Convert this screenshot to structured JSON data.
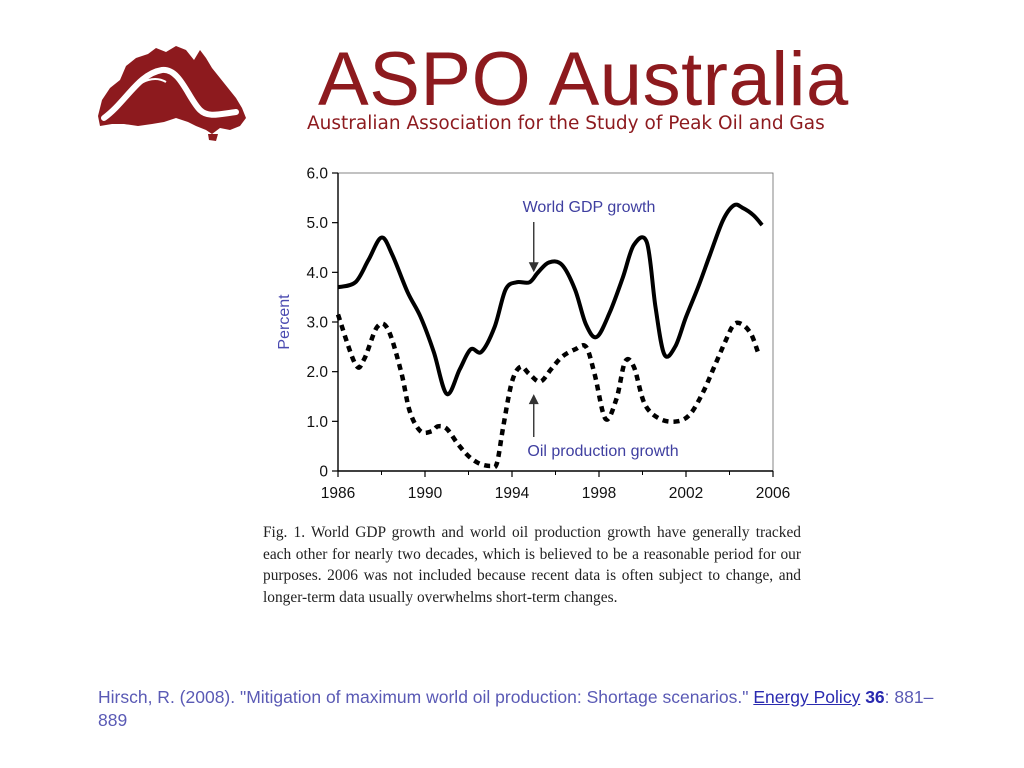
{
  "header": {
    "title": "ASPO Australia",
    "subtitle": "Australian Association for the Study of Peak Oil and Gas",
    "logo_icon": "australia-map-logo-icon",
    "brand_color": "#8d1a1e"
  },
  "chart_data": {
    "type": "line",
    "title": "",
    "xlabel": "",
    "ylabel": "Percent",
    "xlim": [
      1986,
      2006
    ],
    "ylim": [
      0,
      6
    ],
    "grid": false,
    "x_ticks": [
      "1986",
      "1990",
      "1994",
      "1998",
      "2002",
      "2006"
    ],
    "y_ticks": [
      "0",
      "1.0",
      "2.0",
      "3.0",
      "4.0",
      "5.0",
      "6.0"
    ],
    "series": [
      {
        "name": "World GDP growth",
        "style": "solid",
        "color": "#000000",
        "x": [
          1986,
          1986.8,
          1987.4,
          1988.0,
          1988.5,
          1989.2,
          1989.8,
          1990.4,
          1991.0,
          1991.6,
          1992.1,
          1992.6,
          1993.2,
          1993.7,
          1994.2,
          1994.8,
          1995.2,
          1995.7,
          1996.3,
          1996.9,
          1997.4,
          1997.9,
          1998.5,
          1999.1,
          1999.6,
          2000.2,
          2000.6,
          2001.0,
          2001.5,
          2002.0,
          2002.6,
          2003.1,
          2003.7,
          2004.2,
          2004.6,
          2005.1,
          2005.5
        ],
        "y": [
          3.7,
          3.8,
          4.25,
          4.7,
          4.35,
          3.6,
          3.1,
          2.4,
          1.55,
          2.05,
          2.45,
          2.4,
          2.9,
          3.65,
          3.8,
          3.8,
          4.0,
          4.2,
          4.15,
          3.65,
          2.95,
          2.7,
          3.2,
          3.9,
          4.55,
          4.6,
          3.3,
          2.35,
          2.5,
          3.1,
          3.75,
          4.35,
          5.05,
          5.35,
          5.3,
          5.15,
          4.95
        ]
      },
      {
        "name": "Oil production growth",
        "style": "dashed",
        "color": "#000000",
        "x": [
          1986,
          1986.8,
          1987.2,
          1987.8,
          1988.3,
          1988.9,
          1989.3,
          1989.8,
          1990.3,
          1990.6,
          1991.0,
          1991.5,
          1992.0,
          1992.5,
          1993.0,
          1993.3,
          1993.6,
          1994.0,
          1994.4,
          1994.8,
          1995.3,
          1995.8,
          1996.3,
          1996.9,
          1997.4,
          1997.8,
          1998.3,
          1998.8,
          1999.2,
          1999.6,
          2000.1,
          2000.8,
          2001.6,
          2002.2,
          2002.8,
          2003.3,
          2003.8,
          2004.2,
          2004.6,
          2005.0,
          2005.3
        ],
        "y": [
          3.15,
          2.15,
          2.25,
          2.9,
          2.85,
          2.0,
          1.2,
          0.8,
          0.8,
          0.9,
          0.85,
          0.55,
          0.3,
          0.15,
          0.1,
          0.15,
          0.9,
          1.8,
          2.1,
          1.95,
          1.8,
          2.05,
          2.3,
          2.45,
          2.5,
          1.95,
          1.05,
          1.45,
          2.2,
          2.1,
          1.35,
          1.05,
          1.0,
          1.15,
          1.6,
          2.1,
          2.6,
          2.95,
          2.95,
          2.75,
          2.4
        ]
      }
    ],
    "annotations": [
      {
        "text": "World GDP growth",
        "x": 1995,
        "y": 3.8
      },
      {
        "text": "Oil production growth",
        "x": 1995,
        "y": 1.75
      }
    ],
    "colors": {
      "axis": "#000000",
      "ylabel": "#4a4ab0",
      "annotation": "#3f3fa0"
    }
  },
  "caption": "Fig. 1. World GDP growth and world oil production growth have generally tracked each other for nearly two decades, which is believed to be a reasonable period for our purposes. 2006 was not included because recent data is often subject to change, and longer-term data usually overwhelms short-term changes.",
  "citation": {
    "prefix": "Hirsch, R. (2008). \"Mitigation of maximum world oil production: Shortage scenarios.\" ",
    "journal": "Energy Policy",
    "volume": "36",
    "pages": ": 881–889"
  }
}
